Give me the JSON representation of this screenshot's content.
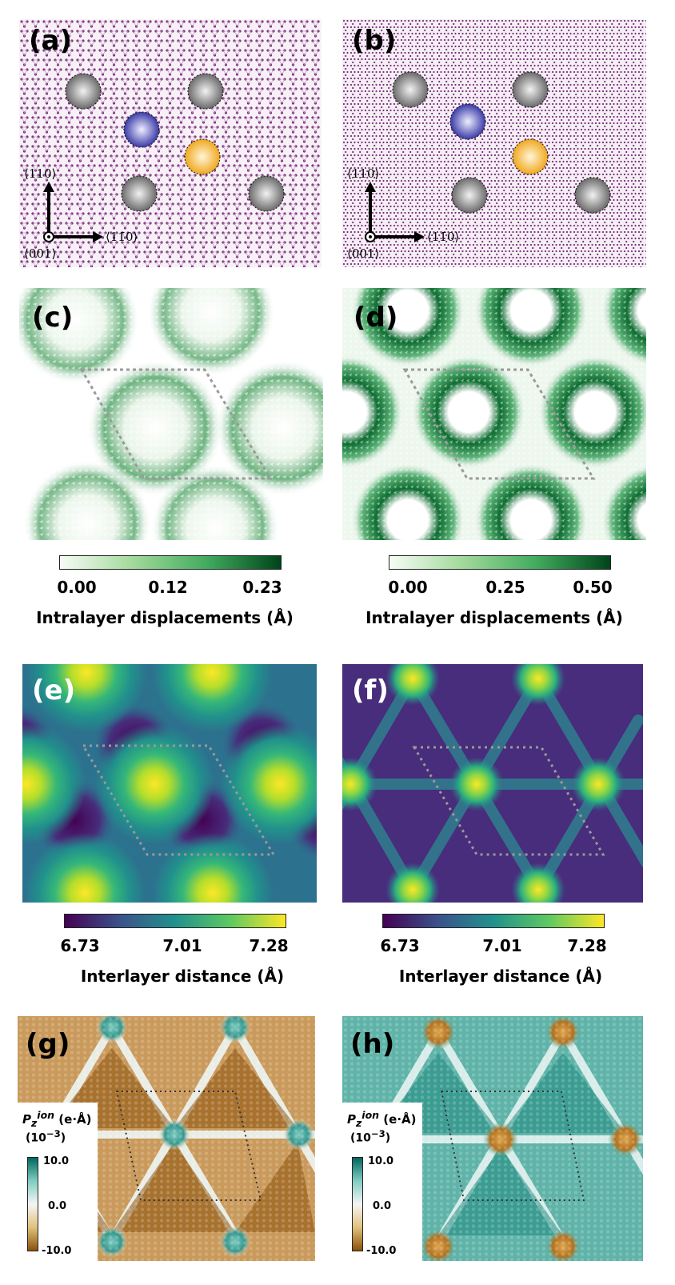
{
  "panels": {
    "a": {
      "label": "(a)"
    },
    "b": {
      "label": "(b)"
    },
    "c": {
      "label": "(c)"
    },
    "d": {
      "label": "(d)"
    },
    "e": {
      "label": "(e)"
    },
    "f": {
      "label": "(f)"
    },
    "g": {
      "label": "(g)"
    },
    "h": {
      "label": "(h)"
    }
  },
  "axes_labels": {
    "up": "⟨110⟩",
    "right": "⟨11̄0⟩",
    "origin": "⟨001⟩"
  },
  "colorbars": {
    "cd_left": {
      "ticks": [
        "0.00",
        "0.12",
        "0.23"
      ],
      "label": "Intralayer displacements (Å)",
      "range": [
        0.0,
        0.23
      ]
    },
    "cd_right": {
      "ticks": [
        "0.00",
        "0.25",
        "0.50"
      ],
      "label": "Intralayer displacements (Å)",
      "range": [
        0.0,
        0.5
      ]
    },
    "ef_left": {
      "ticks": [
        "6.73",
        "7.01",
        "7.28"
      ],
      "label": "Interlayer distance (Å)",
      "range": [
        6.73,
        7.28
      ]
    },
    "ef_right": {
      "ticks": [
        "6.73",
        "7.01",
        "7.28"
      ],
      "label": "Interlayer distance (Å)",
      "range": [
        6.73,
        7.28
      ]
    },
    "gh": {
      "title_sym": "P",
      "title_sub": "z",
      "title_sup": "ion",
      "title_unit": " (e·Å)",
      "scale": "(10",
      "scale_exp": "−3",
      "scale_end": ")",
      "ticks": [
        "10.0",
        "0.0",
        "-10.0"
      ],
      "range": [
        -10.0,
        10.0
      ]
    }
  },
  "colors": {
    "atom_purple": "#7a2f7a",
    "gray_site": "#8a8a8a",
    "blue_site": "#4a4ab0",
    "yellow_site": "#f0b429",
    "green_dark": "#0b5d2a",
    "viridis_low": "#440154",
    "viridis_high": "#fde725",
    "brown": "#8c510a",
    "teal": "#01665e"
  }
}
